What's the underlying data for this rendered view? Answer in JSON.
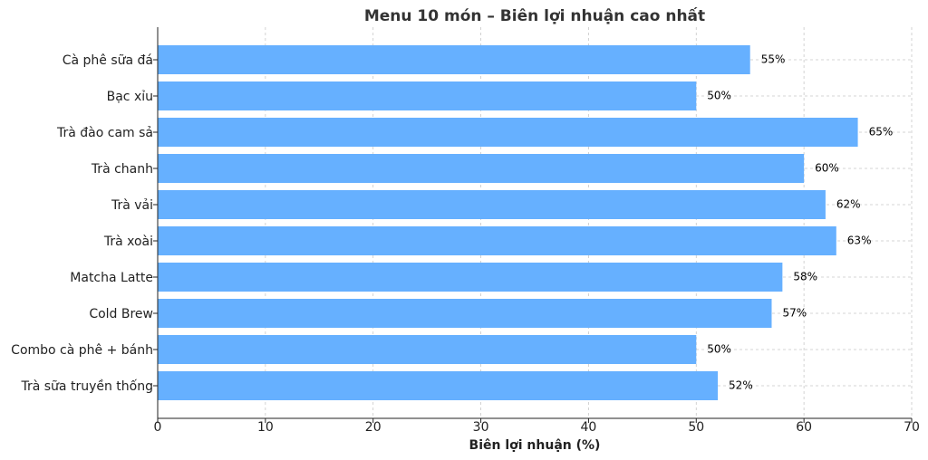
{
  "chart_data": {
    "type": "barh",
    "title": "Menu 10 món – Biên lợi nhuận cao nhất",
    "xlabel": "Biên lợi nhuận (%)",
    "categories": [
      "Cà phê sữa đá",
      "Bạc xỉu",
      "Trà đào cam sả",
      "Trà chanh",
      "Trà vải",
      "Trà xoài",
      "Matcha Latte",
      "Cold Brew",
      "Combo cà phê + bánh",
      "Trà sữa truyền thống"
    ],
    "values": [
      55,
      50,
      65,
      60,
      62,
      63,
      58,
      57,
      50,
      52
    ],
    "value_labels": [
      "55%",
      "50%",
      "65%",
      "60%",
      "62%",
      "63%",
      "58%",
      "57%",
      "50%",
      "52%"
    ],
    "color": "#66b0ff",
    "xlim": [
      0,
      70
    ],
    "xticks": [
      0,
      10,
      20,
      30,
      40,
      50,
      60,
      70
    ],
    "grid": true
  }
}
